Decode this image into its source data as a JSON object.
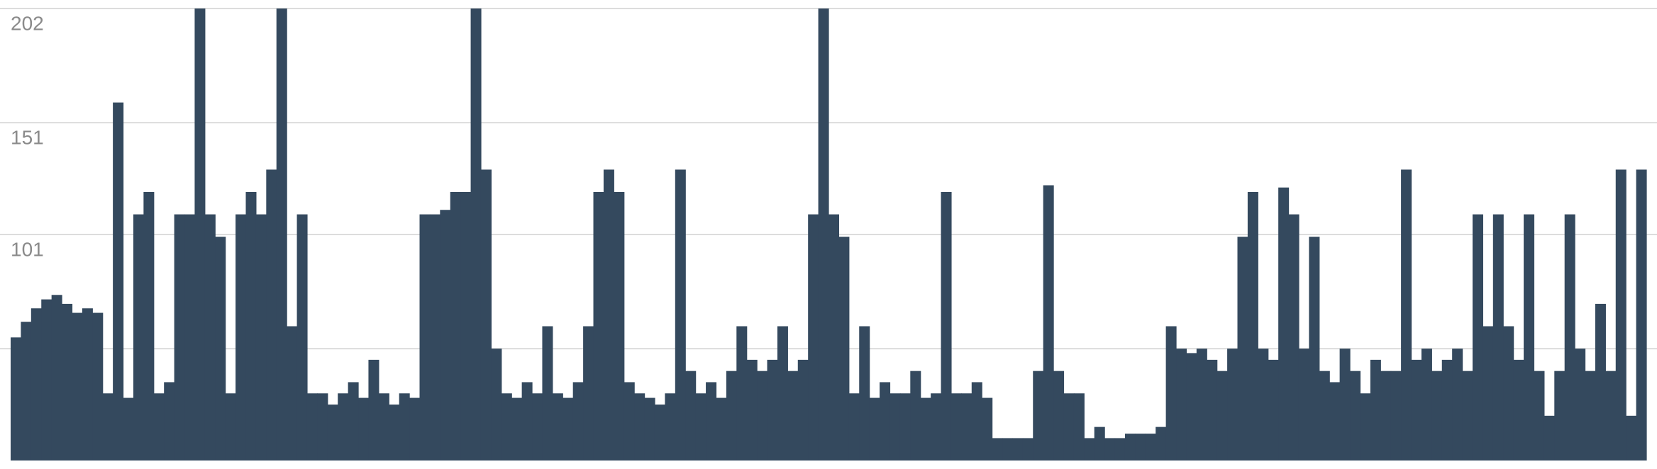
{
  "chart_data": {
    "type": "bar",
    "color": "#34495e",
    "grid": true,
    "ylim": [
      0,
      202
    ],
    "yticks": [
      50,
      101,
      151,
      202
    ],
    "values": [
      55,
      62,
      68,
      72,
      74,
      70,
      66,
      68,
      66,
      30,
      160,
      28,
      110,
      120,
      30,
      35,
      110,
      110,
      202,
      110,
      100,
      30,
      110,
      120,
      110,
      130,
      202,
      60,
      110,
      30,
      30,
      25,
      30,
      35,
      28,
      45,
      30,
      25,
      30,
      28,
      110,
      110,
      112,
      120,
      120,
      202,
      130,
      50,
      30,
      28,
      35,
      30,
      60,
      30,
      28,
      35,
      60,
      120,
      130,
      120,
      35,
      30,
      28,
      25,
      30,
      130,
      40,
      30,
      35,
      28,
      40,
      60,
      45,
      40,
      45,
      60,
      40,
      45,
      110,
      202,
      110,
      100,
      30,
      60,
      28,
      35,
      30,
      30,
      40,
      28,
      30,
      120,
      30,
      30,
      35,
      28,
      10,
      10,
      10,
      10,
      40,
      123,
      40,
      30,
      30,
      10,
      15,
      10,
      10,
      12,
      12,
      12,
      15,
      60,
      50,
      48,
      50,
      45,
      40,
      50,
      100,
      120,
      50,
      45,
      122,
      110,
      50,
      100,
      40,
      35,
      50,
      40,
      30,
      45,
      40,
      40,
      130,
      45,
      50,
      40,
      45,
      50,
      40,
      110,
      60,
      110,
      60,
      45,
      110,
      40,
      20,
      40,
      110,
      50,
      40,
      70,
      40,
      130,
      20,
      130
    ]
  }
}
